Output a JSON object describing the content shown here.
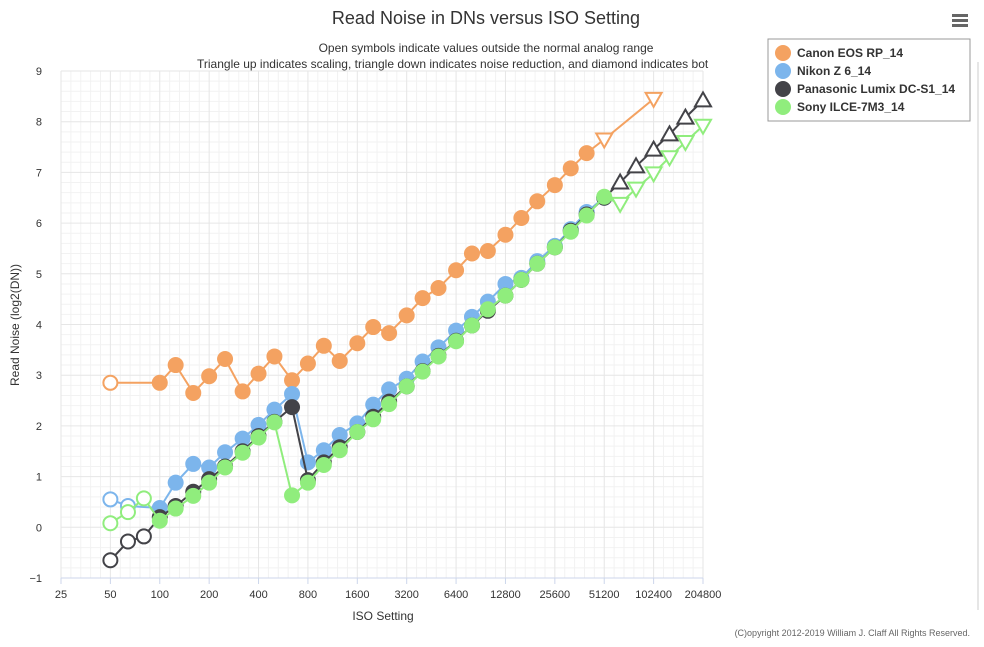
{
  "chart_data": {
    "type": "scatter",
    "title": "Read Noise in DNs versus ISO Setting",
    "subtitle_lines": [
      "Open symbols indicate values outside the normal analog range",
      "Triangle up indicates scaling, triangle down indicates noise reduction, and diamond indicates bot"
    ],
    "xlabel": "ISO Setting",
    "ylabel": "Read Noise (log2(DN))",
    "x_scale": "log2",
    "x_ticks": [
      25,
      50,
      100,
      200,
      400,
      800,
      1600,
      3200,
      6400,
      12800,
      25600,
      51200,
      102400,
      204800
    ],
    "x_tick_labels": [
      "25",
      "50",
      "100",
      "200",
      "400",
      "800",
      "1600",
      "3200",
      "6400",
      "12800",
      "25600",
      "51200",
      "102400",
      "204800"
    ],
    "xlim": [
      25,
      204800
    ],
    "y_ticks": [
      -1,
      0,
      1,
      2,
      3,
      4,
      5,
      6,
      7,
      8,
      9
    ],
    "y_tick_labels": [
      "−1",
      "0",
      "1",
      "2",
      "3",
      "4",
      "5",
      "6",
      "7",
      "8",
      "9"
    ],
    "ylim": [
      -1,
      9
    ],
    "grid": true,
    "minor_grid": true,
    "legend_position": "top-right",
    "credit": "(C)opyright 2012-2019 William J. Claff All Rights Reserved.",
    "series": [
      {
        "name": "Canon EOS RP_14",
        "color": "#f4a261",
        "line_color": "#f4a261",
        "points": [
          {
            "x": 50,
            "y": 2.85,
            "m": "open-circle"
          },
          {
            "x": 100,
            "y": 2.85,
            "m": "circle"
          },
          {
            "x": 125,
            "y": 3.2,
            "m": "circle"
          },
          {
            "x": 160,
            "y": 2.65,
            "m": "circle"
          },
          {
            "x": 200,
            "y": 2.98,
            "m": "circle"
          },
          {
            "x": 250,
            "y": 3.32,
            "m": "circle"
          },
          {
            "x": 320,
            "y": 2.68,
            "m": "circle"
          },
          {
            "x": 400,
            "y": 3.03,
            "m": "circle"
          },
          {
            "x": 500,
            "y": 3.37,
            "m": "circle"
          },
          {
            "x": 640,
            "y": 2.9,
            "m": "circle"
          },
          {
            "x": 800,
            "y": 3.23,
            "m": "circle"
          },
          {
            "x": 1000,
            "y": 3.58,
            "m": "circle"
          },
          {
            "x": 1250,
            "y": 3.28,
            "m": "circle"
          },
          {
            "x": 1600,
            "y": 3.63,
            "m": "circle"
          },
          {
            "x": 2000,
            "y": 3.95,
            "m": "circle"
          },
          {
            "x": 2500,
            "y": 3.83,
            "m": "circle"
          },
          {
            "x": 3200,
            "y": 4.18,
            "m": "circle"
          },
          {
            "x": 4000,
            "y": 4.52,
            "m": "circle"
          },
          {
            "x": 5000,
            "y": 4.72,
            "m": "circle"
          },
          {
            "x": 6400,
            "y": 5.07,
            "m": "circle"
          },
          {
            "x": 8000,
            "y": 5.4,
            "m": "circle"
          },
          {
            "x": 10000,
            "y": 5.45,
            "m": "circle"
          },
          {
            "x": 12800,
            "y": 5.77,
            "m": "circle"
          },
          {
            "x": 16000,
            "y": 6.1,
            "m": "circle"
          },
          {
            "x": 20000,
            "y": 6.43,
            "m": "circle"
          },
          {
            "x": 25600,
            "y": 6.75,
            "m": "circle"
          },
          {
            "x": 32000,
            "y": 7.08,
            "m": "circle"
          },
          {
            "x": 40000,
            "y": 7.38,
            "m": "circle"
          },
          {
            "x": 51200,
            "y": 7.65,
            "m": "open-triangle-down"
          },
          {
            "x": 102400,
            "y": 8.45,
            "m": "open-triangle-down"
          }
        ]
      },
      {
        "name": "Nikon Z 6_14",
        "color": "#7cb5ec",
        "line_color": "#7cb5ec",
        "points": [
          {
            "x": 50,
            "y": 0.55,
            "m": "open-circle"
          },
          {
            "x": 64,
            "y": 0.42,
            "m": "open-circle"
          },
          {
            "x": 100,
            "y": 0.38,
            "m": "circle"
          },
          {
            "x": 125,
            "y": 0.88,
            "m": "circle"
          },
          {
            "x": 160,
            "y": 1.25,
            "m": "circle"
          },
          {
            "x": 200,
            "y": 1.18,
            "m": "circle"
          },
          {
            "x": 250,
            "y": 1.48,
            "m": "circle"
          },
          {
            "x": 320,
            "y": 1.75,
            "m": "circle"
          },
          {
            "x": 400,
            "y": 2.02,
            "m": "circle"
          },
          {
            "x": 500,
            "y": 2.32,
            "m": "circle"
          },
          {
            "x": 640,
            "y": 2.63,
            "m": "circle"
          },
          {
            "x": 800,
            "y": 1.28,
            "m": "circle"
          },
          {
            "x": 1000,
            "y": 1.52,
            "m": "circle"
          },
          {
            "x": 1250,
            "y": 1.82,
            "m": "circle"
          },
          {
            "x": 1600,
            "y": 2.05,
            "m": "circle"
          },
          {
            "x": 2000,
            "y": 2.42,
            "m": "circle"
          },
          {
            "x": 2500,
            "y": 2.72,
            "m": "circle"
          },
          {
            "x": 3200,
            "y": 2.93,
            "m": "circle"
          },
          {
            "x": 4000,
            "y": 3.27,
            "m": "circle"
          },
          {
            "x": 5000,
            "y": 3.55,
            "m": "circle"
          },
          {
            "x": 6400,
            "y": 3.88,
            "m": "circle"
          },
          {
            "x": 8000,
            "y": 4.15,
            "m": "circle"
          },
          {
            "x": 10000,
            "y": 4.45,
            "m": "circle"
          },
          {
            "x": 12800,
            "y": 4.8,
            "m": "circle"
          },
          {
            "x": 16000,
            "y": 4.92,
            "m": "circle"
          },
          {
            "x": 20000,
            "y": 5.25,
            "m": "circle"
          },
          {
            "x": 25600,
            "y": 5.55,
            "m": "circle"
          },
          {
            "x": 32000,
            "y": 5.88,
            "m": "circle"
          },
          {
            "x": 40000,
            "y": 6.22,
            "m": "circle"
          },
          {
            "x": 51200,
            "y": 6.5,
            "m": "circle"
          }
        ]
      },
      {
        "name": "Panasonic Lumix DC-S1_14",
        "color": "#434348",
        "line_color": "#434348",
        "points": [
          {
            "x": 50,
            "y": -0.65,
            "m": "open-circle"
          },
          {
            "x": 64,
            "y": -0.28,
            "m": "open-circle"
          },
          {
            "x": 80,
            "y": -0.18,
            "m": "open-circle"
          },
          {
            "x": 100,
            "y": 0.2,
            "m": "circle"
          },
          {
            "x": 125,
            "y": 0.42,
            "m": "circle"
          },
          {
            "x": 160,
            "y": 0.7,
            "m": "circle"
          },
          {
            "x": 200,
            "y": 0.95,
            "m": "circle"
          },
          {
            "x": 250,
            "y": 1.2,
            "m": "circle"
          },
          {
            "x": 320,
            "y": 1.5,
            "m": "circle"
          },
          {
            "x": 400,
            "y": 1.8,
            "m": "circle"
          },
          {
            "x": 500,
            "y": 2.08,
            "m": "circle"
          },
          {
            "x": 640,
            "y": 2.37,
            "m": "circle"
          },
          {
            "x": 800,
            "y": 0.93,
            "m": "circle"
          },
          {
            "x": 1000,
            "y": 1.28,
            "m": "circle"
          },
          {
            "x": 1250,
            "y": 1.58,
            "m": "circle"
          },
          {
            "x": 1600,
            "y": 1.88,
            "m": "circle"
          },
          {
            "x": 2000,
            "y": 2.18,
            "m": "circle"
          },
          {
            "x": 2500,
            "y": 2.48,
            "m": "circle"
          },
          {
            "x": 3200,
            "y": 2.78,
            "m": "circle"
          },
          {
            "x": 4000,
            "y": 3.08,
            "m": "circle"
          },
          {
            "x": 5000,
            "y": 3.38,
            "m": "circle"
          },
          {
            "x": 6400,
            "y": 3.68,
            "m": "circle"
          },
          {
            "x": 8000,
            "y": 3.98,
            "m": "circle"
          },
          {
            "x": 10000,
            "y": 4.27,
            "m": "circle"
          },
          {
            "x": 12800,
            "y": 4.57,
            "m": "circle"
          },
          {
            "x": 16000,
            "y": 4.88,
            "m": "circle"
          },
          {
            "x": 20000,
            "y": 5.2,
            "m": "circle"
          },
          {
            "x": 25600,
            "y": 5.52,
            "m": "circle"
          },
          {
            "x": 32000,
            "y": 5.85,
            "m": "circle"
          },
          {
            "x": 40000,
            "y": 6.17,
            "m": "circle"
          },
          {
            "x": 51200,
            "y": 6.5,
            "m": "circle"
          },
          {
            "x": 64000,
            "y": 6.8,
            "m": "open-triangle-up"
          },
          {
            "x": 80000,
            "y": 7.12,
            "m": "open-triangle-up"
          },
          {
            "x": 102400,
            "y": 7.45,
            "m": "open-triangle-up"
          },
          {
            "x": 128000,
            "y": 7.75,
            "m": "open-triangle-up"
          },
          {
            "x": 160000,
            "y": 8.08,
            "m": "open-triangle-up"
          },
          {
            "x": 204800,
            "y": 8.42,
            "m": "open-triangle-up"
          }
        ]
      },
      {
        "name": "Sony ILCE-7M3_14",
        "color": "#90ed7d",
        "line_color": "#90ed7d",
        "points": [
          {
            "x": 50,
            "y": 0.08,
            "m": "open-circle"
          },
          {
            "x": 64,
            "y": 0.3,
            "m": "open-circle"
          },
          {
            "x": 80,
            "y": 0.57,
            "m": "open-circle"
          },
          {
            "x": 100,
            "y": 0.13,
            "m": "circle"
          },
          {
            "x": 125,
            "y": 0.37,
            "m": "circle"
          },
          {
            "x": 160,
            "y": 0.62,
            "m": "circle"
          },
          {
            "x": 200,
            "y": 0.88,
            "m": "circle"
          },
          {
            "x": 250,
            "y": 1.18,
            "m": "circle"
          },
          {
            "x": 320,
            "y": 1.47,
            "m": "circle"
          },
          {
            "x": 400,
            "y": 1.77,
            "m": "circle"
          },
          {
            "x": 500,
            "y": 2.07,
            "m": "circle"
          },
          {
            "x": 640,
            "y": 0.63,
            "m": "circle"
          },
          {
            "x": 800,
            "y": 0.88,
            "m": "circle"
          },
          {
            "x": 1000,
            "y": 1.23,
            "m": "circle"
          },
          {
            "x": 1250,
            "y": 1.52,
            "m": "circle"
          },
          {
            "x": 1600,
            "y": 1.88,
            "m": "circle"
          },
          {
            "x": 2000,
            "y": 2.13,
            "m": "circle"
          },
          {
            "x": 2500,
            "y": 2.43,
            "m": "circle"
          },
          {
            "x": 3200,
            "y": 2.78,
            "m": "circle"
          },
          {
            "x": 4000,
            "y": 3.07,
            "m": "circle"
          },
          {
            "x": 5000,
            "y": 3.37,
            "m": "circle"
          },
          {
            "x": 6400,
            "y": 3.67,
            "m": "circle"
          },
          {
            "x": 8000,
            "y": 3.98,
            "m": "circle"
          },
          {
            "x": 10000,
            "y": 4.3,
            "m": "circle"
          },
          {
            "x": 12800,
            "y": 4.57,
            "m": "circle"
          },
          {
            "x": 16000,
            "y": 4.88,
            "m": "circle"
          },
          {
            "x": 20000,
            "y": 5.2,
            "m": "circle"
          },
          {
            "x": 25600,
            "y": 5.52,
            "m": "circle"
          },
          {
            "x": 32000,
            "y": 5.83,
            "m": "circle"
          },
          {
            "x": 40000,
            "y": 6.15,
            "m": "circle"
          },
          {
            "x": 51200,
            "y": 6.52,
            "m": "circle"
          },
          {
            "x": 64000,
            "y": 6.38,
            "m": "open-triangle-down"
          },
          {
            "x": 80000,
            "y": 6.68,
            "m": "open-triangle-down"
          },
          {
            "x": 102400,
            "y": 6.98,
            "m": "open-triangle-down"
          },
          {
            "x": 128000,
            "y": 7.3,
            "m": "open-triangle-down"
          },
          {
            "x": 160000,
            "y": 7.6,
            "m": "open-triangle-down"
          },
          {
            "x": 204800,
            "y": 7.92,
            "m": "open-triangle-down"
          }
        ]
      }
    ]
  },
  "ui": {
    "menu_icon": "hamburger-icon",
    "grid_color": "#e6e6e6",
    "minor_grid_color": "#f2f2f2",
    "legend_border_color": "#999999"
  }
}
